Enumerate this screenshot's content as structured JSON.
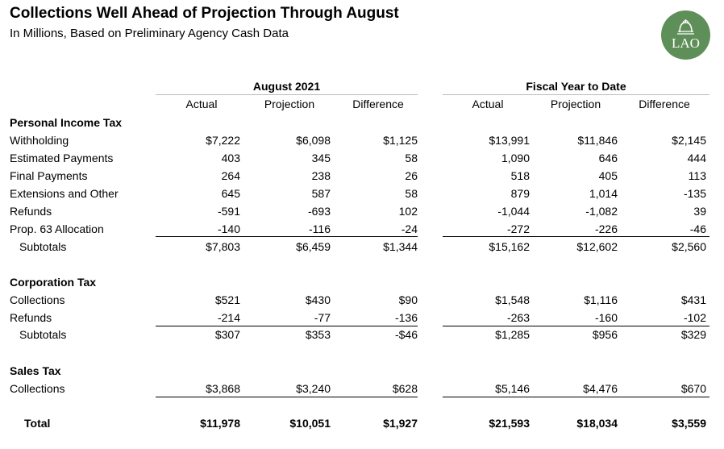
{
  "title": "Collections Well Ahead of Projection Through August",
  "subtitle": "In Millions, Based on Preliminary Agency Cash Data",
  "logo": "LAO",
  "groups": [
    "August 2021",
    "Fiscal Year to Date"
  ],
  "columns": [
    "Actual",
    "Projection",
    "Difference",
    "Actual",
    "Projection",
    "Difference"
  ],
  "sections": [
    {
      "title": "Personal Income Tax",
      "rows": [
        {
          "label": "Withholding",
          "values": [
            "$7,222",
            "$6,098",
            "$1,125",
            "$13,991",
            "$11,846",
            "$2,145"
          ]
        },
        {
          "label": "Estimated Payments",
          "values": [
            "403",
            "345",
            "58",
            "1,090",
            "646",
            "444"
          ]
        },
        {
          "label": "Final Payments",
          "values": [
            "264",
            "238",
            "26",
            "518",
            "405",
            "113"
          ]
        },
        {
          "label": "Extensions and Other",
          "values": [
            "645",
            "587",
            "58",
            "879",
            "1,014",
            "-135"
          ]
        },
        {
          "label": "Refunds",
          "values": [
            "-591",
            "-693",
            "102",
            "-1,044",
            "-1,082",
            "39"
          ]
        },
        {
          "label": "Prop. 63 Allocation",
          "values": [
            "-140",
            "-116",
            "-24",
            "-272",
            "-226",
            "-46"
          ]
        }
      ],
      "subtotal": {
        "label": "Subtotals",
        "values": [
          "$7,803",
          "$6,459",
          "$1,344",
          "$15,162",
          "$12,602",
          "$2,560"
        ]
      }
    },
    {
      "title": "Corporation Tax",
      "rows": [
        {
          "label": "Collections",
          "values": [
            "$521",
            "$430",
            "$90",
            "$1,548",
            "$1,116",
            "$431"
          ]
        },
        {
          "label": "Refunds",
          "values": [
            "-214",
            "-77",
            "-136",
            "-263",
            "-160",
            "-102"
          ]
        }
      ],
      "subtotal": {
        "label": "Subtotals",
        "values": [
          "$307",
          "$353",
          "-$46",
          "$1,285",
          "$956",
          "$329"
        ]
      }
    },
    {
      "title": "Sales Tax",
      "rows": [
        {
          "label": "Collections",
          "values": [
            "$3,868",
            "$3,240",
            "$628",
            "$5,146",
            "$4,476",
            "$670"
          ]
        }
      ]
    }
  ],
  "total": {
    "label": "Total",
    "values": [
      "$11,978",
      "$10,051",
      "$1,927",
      "$21,593",
      "$18,034",
      "$3,559"
    ]
  }
}
